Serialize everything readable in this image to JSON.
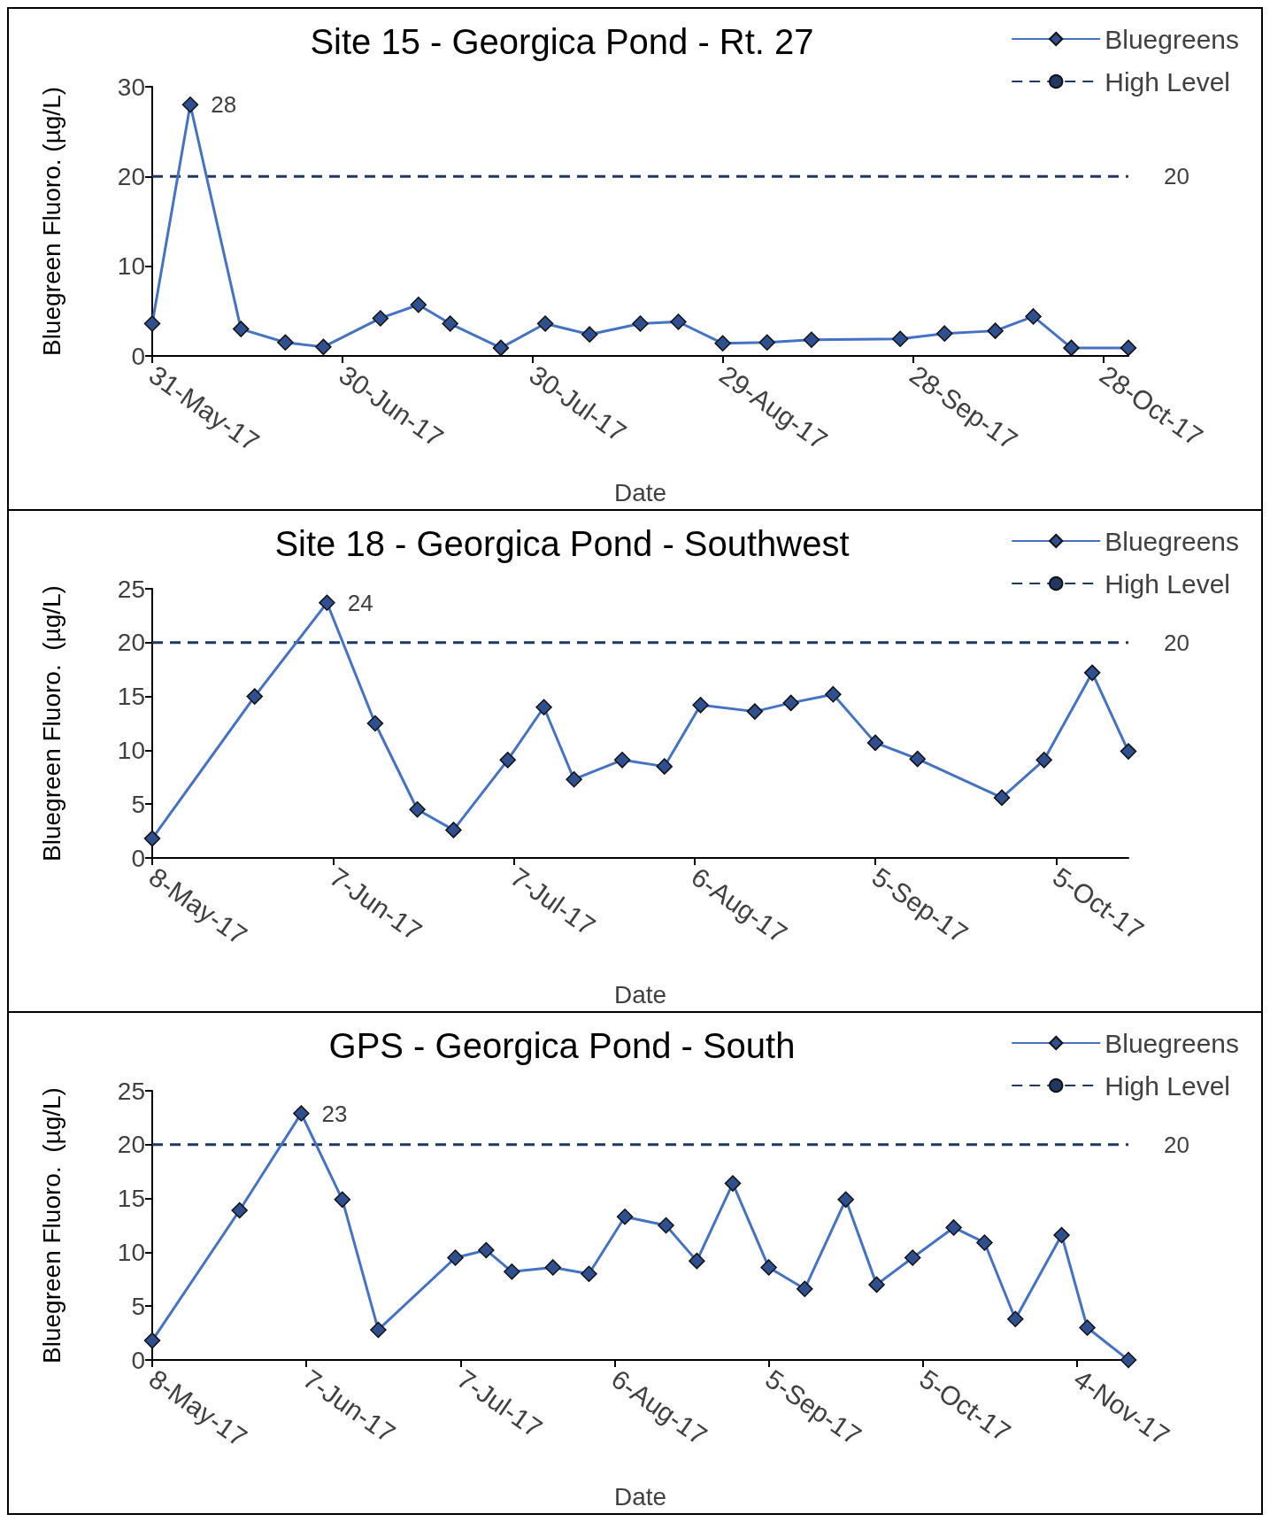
{
  "chart_data": [
    {
      "type": "line",
      "title": "Site 15 - Georgica Pond - Rt. 27",
      "xlabel": "Date",
      "ylabel": "Bluegreen Fluoro. (µg/L)",
      "xlim": [
        "2017-05-31",
        "2017-11-01"
      ],
      "xticks": [
        {
          "value": "2017-05-31",
          "label": "31-May-17"
        },
        {
          "value": "2017-06-30",
          "label": "30-Jun-17"
        },
        {
          "value": "2017-07-30",
          "label": "30-Jul-17"
        },
        {
          "value": "2017-08-29",
          "label": "29-Aug-17"
        },
        {
          "value": "2017-09-28",
          "label": "28-Sep-17"
        },
        {
          "value": "2017-10-28",
          "label": "28-Oct-17"
        }
      ],
      "ylim": [
        0,
        30
      ],
      "yticks": [
        0,
        10,
        20,
        30
      ],
      "grid": false,
      "legend": "top right",
      "series": [
        {
          "name": "Bluegreens",
          "color": "#4472c4",
          "marker": "diamond",
          "line_style": "solid",
          "x": [
            "2017-05-31",
            "2017-06-06",
            "2017-06-14",
            "2017-06-21",
            "2017-06-27",
            "2017-07-06",
            "2017-07-12",
            "2017-07-17",
            "2017-07-25",
            "2017-08-01",
            "2017-08-08",
            "2017-08-16",
            "2017-08-22",
            "2017-08-29",
            "2017-09-05",
            "2017-09-12",
            "2017-09-26",
            "2017-10-03",
            "2017-10-11",
            "2017-10-17",
            "2017-10-23",
            "2017-11-01"
          ],
          "values": [
            3.6,
            28,
            3.0,
            1.5,
            1.0,
            4.2,
            5.7,
            3.6,
            0.9,
            3.6,
            2.4,
            3.6,
            3.8,
            1.4,
            1.5,
            1.8,
            1.9,
            2.5,
            2.8,
            4.4,
            0.9,
            0.9
          ],
          "value_labels": [
            null,
            "28",
            null,
            null,
            null,
            null,
            null,
            null,
            null,
            null,
            null,
            null,
            null,
            null,
            null,
            null,
            null,
            null,
            null,
            null,
            null,
            null
          ]
        },
        {
          "name": "High Level",
          "color": "#203864",
          "marker": "none",
          "line_style": "dashed",
          "x": [
            "2017-05-31",
            "2017-11-01"
          ],
          "values": [
            20,
            20
          ],
          "value_labels": [
            null,
            "20"
          ]
        }
      ]
    },
    {
      "type": "line",
      "title": "Site 18 - Georgica Pond - Southwest",
      "xlabel": "Date",
      "ylabel": "Bluegreen Fluoro.  (µg/L)",
      "xlim": [
        "2017-05-08",
        "2017-10-17"
      ],
      "xticks": [
        {
          "value": "2017-05-08",
          "label": "8-May-17"
        },
        {
          "value": "2017-06-07",
          "label": "7-Jun-17"
        },
        {
          "value": "2017-07-07",
          "label": "7-Jul-17"
        },
        {
          "value": "2017-08-06",
          "label": "6-Aug-17"
        },
        {
          "value": "2017-09-05",
          "label": "5-Sep-17"
        },
        {
          "value": "2017-10-05",
          "label": "5-Oct-17"
        }
      ],
      "ylim": [
        0,
        25
      ],
      "yticks": [
        0,
        5,
        10,
        15,
        20,
        25
      ],
      "grid": false,
      "legend": "top right",
      "series": [
        {
          "name": "Bluegreens",
          "color": "#4472c4",
          "marker": "diamond",
          "line_style": "solid",
          "x": [
            "2017-05-08",
            "2017-05-25",
            "2017-06-06",
            "2017-06-14",
            "2017-06-21",
            "2017-06-27",
            "2017-07-06",
            "2017-07-12",
            "2017-07-17",
            "2017-07-25",
            "2017-08-01",
            "2017-08-07",
            "2017-08-16",
            "2017-08-22",
            "2017-08-29",
            "2017-09-05",
            "2017-09-12",
            "2017-09-26",
            "2017-10-03",
            "2017-10-11",
            "2017-10-17"
          ],
          "values": [
            1.8,
            15.0,
            23.7,
            12.5,
            4.5,
            2.6,
            9.1,
            14.0,
            7.3,
            9.1,
            8.5,
            14.2,
            13.6,
            14.4,
            15.2,
            10.7,
            9.2,
            5.6,
            9.1,
            17.2,
            9.9
          ],
          "value_labels": [
            null,
            null,
            "24",
            null,
            null,
            null,
            null,
            null,
            null,
            null,
            null,
            null,
            null,
            null,
            null,
            null,
            null,
            null,
            null,
            null,
            null
          ]
        },
        {
          "name": "High Level",
          "color": "#203864",
          "marker": "none",
          "line_style": "dashed",
          "x": [
            "2017-05-08",
            "2017-10-17"
          ],
          "values": [
            20,
            20
          ],
          "value_labels": [
            null,
            "20"
          ]
        }
      ]
    },
    {
      "type": "line",
      "title": "GPS - Georgica Pond - South",
      "xlabel": "Date",
      "ylabel": "Bluegreen Fluoro.  (µg/L)",
      "xlim": [
        "2017-05-08",
        "2017-11-14"
      ],
      "xticks": [
        {
          "value": "2017-05-08",
          "label": "8-May-17"
        },
        {
          "value": "2017-06-07",
          "label": "7-Jun-17"
        },
        {
          "value": "2017-07-07",
          "label": "7-Jul-17"
        },
        {
          "value": "2017-08-06",
          "label": "6-Aug-17"
        },
        {
          "value": "2017-09-05",
          "label": "5-Sep-17"
        },
        {
          "value": "2017-10-05",
          "label": "5-Oct-17"
        },
        {
          "value": "2017-11-04",
          "label": "4-Nov-17"
        }
      ],
      "ylim": [
        0,
        25
      ],
      "yticks": [
        0,
        5,
        10,
        15,
        20,
        25
      ],
      "grid": false,
      "legend": "top right",
      "series": [
        {
          "name": "Bluegreens",
          "color": "#4472c4",
          "marker": "diamond",
          "line_style": "solid",
          "x": [
            "2017-05-08",
            "2017-05-25",
            "2017-06-06",
            "2017-06-14",
            "2017-06-21",
            "2017-07-06",
            "2017-07-12",
            "2017-07-17",
            "2017-07-25",
            "2017-08-01",
            "2017-08-08",
            "2017-08-16",
            "2017-08-22",
            "2017-08-29",
            "2017-09-05",
            "2017-09-12",
            "2017-09-20",
            "2017-09-26",
            "2017-10-03",
            "2017-10-11",
            "2017-10-17",
            "2017-10-23",
            "2017-11-01",
            "2017-11-06",
            "2017-11-14"
          ],
          "values": [
            1.8,
            13.9,
            22.9,
            14.9,
            2.8,
            9.5,
            10.2,
            8.2,
            8.6,
            8.0,
            13.3,
            12.5,
            9.2,
            16.4,
            8.6,
            6.6,
            14.9,
            7.0,
            9.5,
            12.3,
            10.9,
            3.8,
            11.6,
            3.0,
            0
          ],
          "value_labels": [
            null,
            null,
            "23",
            null,
            null,
            null,
            null,
            null,
            null,
            null,
            null,
            null,
            null,
            null,
            null,
            null,
            null,
            null,
            null,
            null,
            null,
            null,
            null,
            null,
            null
          ]
        },
        {
          "name": "High Level",
          "color": "#203864",
          "marker": "none",
          "line_style": "dashed",
          "x": [
            "2017-05-08",
            "2017-11-14"
          ],
          "values": [
            20,
            20
          ],
          "value_labels": [
            null,
            "20"
          ]
        }
      ]
    }
  ]
}
